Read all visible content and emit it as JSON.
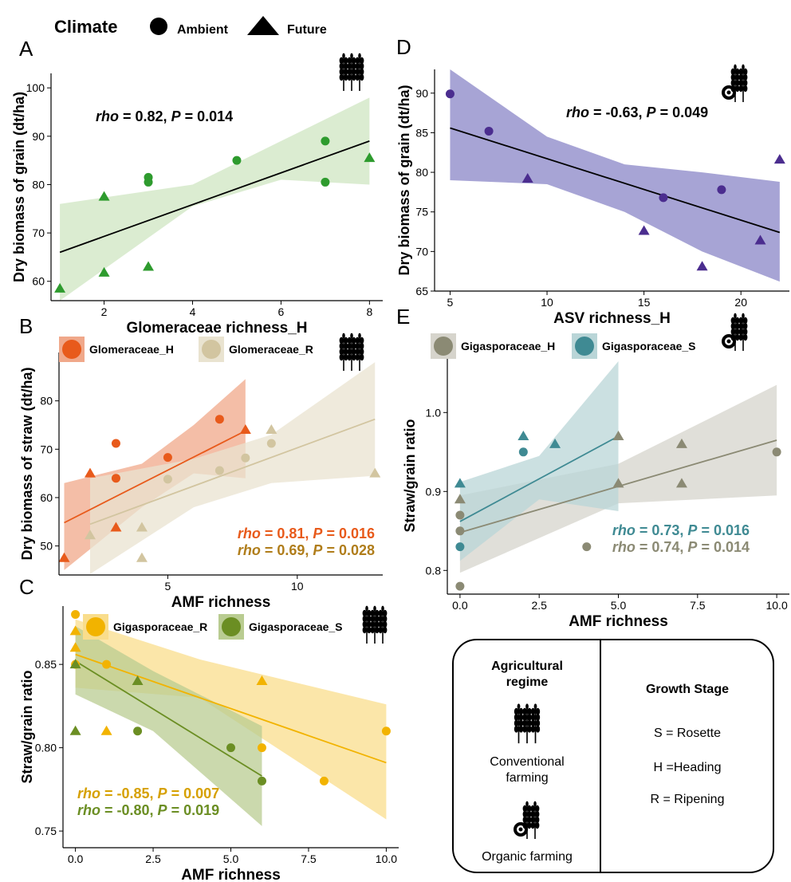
{
  "legend": {
    "title": "Climate",
    "items": [
      {
        "label": "Ambient",
        "shape": "circle"
      },
      {
        "label": "Future",
        "shape": "triangle"
      }
    ]
  },
  "colors": {
    "glom_H": "#e85a1b",
    "glom_R": "#d2c5a0",
    "giga_R": "#f2b300",
    "giga_S": "#6b8e23",
    "giga_H": "#8b8a74",
    "giga_S2": "#3f8a93",
    "asv_H": "#4b2d8f",
    "glom_A": "#2e9b2e",
    "fit": "#000000"
  },
  "chart_data": [
    {
      "panel": "A",
      "type": "scatter",
      "xlabel": "Glomeraceae richness_H",
      "ylabel": "Dry biomass of grain (dt/ha)",
      "xlim": [
        0.8,
        8.3
      ],
      "ylim": [
        56,
        103
      ],
      "xticks": [
        "2",
        "4",
        "6",
        "8"
      ],
      "xtick_values": [
        2,
        4,
        6,
        8
      ],
      "yticks": [
        "60",
        "70",
        "80",
        "90",
        "100"
      ],
      "ytick_values": [
        60,
        70,
        80,
        90,
        100
      ],
      "annotations": [
        {
          "rho": "0.82",
          "p": "0.014",
          "color": "#000000"
        }
      ],
      "farming": "conventional",
      "series": [
        {
          "color": "#2e9b2e",
          "band": "#cfe6c2",
          "points": [
            [
              1,
              58.5,
              "Future"
            ],
            [
              2,
              77.5,
              "Future"
            ],
            [
              2,
              61.8,
              "Future"
            ],
            [
              3,
              81.5,
              "Ambient"
            ],
            [
              3,
              80.5,
              "Ambient"
            ],
            [
              3,
              63,
              "Future"
            ],
            [
              5,
              85,
              "Ambient"
            ],
            [
              7,
              89,
              "Ambient"
            ],
            [
              7,
              80.5,
              "Ambient"
            ],
            [
              8,
              85.5,
              "Future"
            ]
          ],
          "fit": [
            [
              1,
              66
            ],
            [
              8,
              89
            ]
          ],
          "band_upper": [
            [
              1,
              76
            ],
            [
              4,
              80
            ],
            [
              6,
              89
            ],
            [
              8,
              98
            ]
          ],
          "band_lower": [
            [
              1,
              56
            ],
            [
              4,
              75.5
            ],
            [
              6,
              81
            ],
            [
              8,
              80
            ]
          ]
        }
      ]
    },
    {
      "panel": "D",
      "type": "scatter",
      "xlabel": "ASV richness_H",
      "ylabel": "Dry biomass of grain (dt/ha)",
      "xlim": [
        4.2,
        22.5
      ],
      "ylim": [
        65,
        93
      ],
      "xticks": [
        "5",
        "10",
        "15",
        "20"
      ],
      "xtick_values": [
        5,
        10,
        15,
        20
      ],
      "yticks": [
        "65",
        "70",
        "75",
        "80",
        "85",
        "90"
      ],
      "ytick_values": [
        65,
        70,
        75,
        80,
        85,
        90
      ],
      "annotations": [
        {
          "rho": "-0.63",
          "p": "0.049",
          "color": "#000000"
        }
      ],
      "farming": "organic",
      "series": [
        {
          "color": "#4b2d8f",
          "band": "#8a85c7",
          "points": [
            [
              5,
              89.9,
              "Ambient"
            ],
            [
              7,
              85.2,
              "Ambient"
            ],
            [
              9,
              79.2,
              "Future"
            ],
            [
              15,
              72.6,
              "Future"
            ],
            [
              16,
              76.8,
              "Ambient"
            ],
            [
              18,
              68.1,
              "Future"
            ],
            [
              19,
              77.8,
              "Ambient"
            ],
            [
              21,
              71.4,
              "Future"
            ],
            [
              22,
              81.6,
              "Future"
            ]
          ],
          "fit": [
            [
              5,
              85.6
            ],
            [
              22,
              72.4
            ]
          ],
          "band_upper": [
            [
              5,
              93
            ],
            [
              10,
              84.5
            ],
            [
              14,
              81
            ],
            [
              18,
              80
            ],
            [
              22,
              78.8
            ]
          ],
          "band_lower": [
            [
              5,
              79
            ],
            [
              10,
              78.5
            ],
            [
              14,
              75
            ],
            [
              18,
              70
            ],
            [
              22,
              66.2
            ]
          ]
        }
      ]
    },
    {
      "panel": "B",
      "type": "scatter",
      "xlabel": "AMF richness",
      "ylabel": "Dry biomass of straw (dt/ha)",
      "xlim": [
        0.8,
        13.3
      ],
      "ylim": [
        44,
        90
      ],
      "xticks": [
        "5",
        "10"
      ],
      "xtick_values": [
        5,
        10
      ],
      "yticks": [
        "50",
        "60",
        "70",
        "80"
      ],
      "ytick_values": [
        50,
        60,
        70,
        80
      ],
      "legend": [
        "Glomeraceae_H",
        "Glomeraceae_R"
      ],
      "annotations": [
        {
          "rho": "0.81",
          "p": "0.016",
          "color": "#e85a1b"
        },
        {
          "rho": "0.69",
          "p": "0.028",
          "color": "#b07d1a"
        }
      ],
      "farming": "conventional",
      "series": [
        {
          "name": "Glomeraceae_H",
          "color": "#e85a1b",
          "band": "#f0a88a",
          "points": [
            [
              1,
              47.5,
              "Future"
            ],
            [
              2,
              65,
              "Future"
            ],
            [
              3,
              71.2,
              "Ambient"
            ],
            [
              3,
              64,
              "Ambient"
            ],
            [
              3,
              53.8,
              "Future"
            ],
            [
              5,
              68.3,
              "Ambient"
            ],
            [
              7,
              76.2,
              "Ambient"
            ],
            [
              8,
              74,
              "Future"
            ]
          ],
          "fit": [
            [
              1,
              54.8
            ],
            [
              8,
              73.8
            ]
          ],
          "band_upper": [
            [
              1,
              63
            ],
            [
              4,
              67
            ],
            [
              6,
              75
            ],
            [
              8,
              84.5
            ]
          ],
          "band_lower": [
            [
              1,
              45
            ],
            [
              4,
              58
            ],
            [
              6,
              65
            ],
            [
              8,
              64
            ]
          ]
        },
        {
          "name": "Glomeraceae_R",
          "color": "#d2c5a0",
          "band": "#e9e3d0",
          "points": [
            [
              2,
              52.2,
              "Future"
            ],
            [
              4,
              53.8,
              "Future"
            ],
            [
              4,
              47.5,
              "Future"
            ],
            [
              5,
              63.8,
              "Ambient"
            ],
            [
              7,
              65.6,
              "Ambient"
            ],
            [
              8,
              68.2,
              "Ambient"
            ],
            [
              9,
              74,
              "Future"
            ],
            [
              9,
              71.2,
              "Ambient"
            ],
            [
              13,
              65,
              "Future"
            ]
          ],
          "fit": [
            [
              2,
              54.5
            ],
            [
              13,
              76.2
            ]
          ],
          "band_upper": [
            [
              2,
              64
            ],
            [
              6,
              68
            ],
            [
              9,
              73
            ],
            [
              13,
              88
            ]
          ],
          "band_lower": [
            [
              2,
              44.2
            ],
            [
              6,
              58
            ],
            [
              9,
              63
            ],
            [
              13,
              64.5
            ]
          ]
        }
      ]
    },
    {
      "panel": "E",
      "type": "scatter",
      "xlabel": "AMF richness",
      "ylabel": "Straw/grain ratio",
      "xlim": [
        -0.4,
        10.4
      ],
      "ylim": [
        0.77,
        1.07
      ],
      "xticks": [
        "0.0",
        "2.5",
        "5.0",
        "7.5",
        "10.0"
      ],
      "xtick_values": [
        0,
        2.5,
        5,
        7.5,
        10
      ],
      "yticks": [
        "0.8",
        "0.9",
        "1.0"
      ],
      "ytick_values": [
        0.8,
        0.9,
        1.0
      ],
      "legend": [
        "Gigasporaceae_H",
        "Gigasporaceae_S"
      ],
      "annotations": [
        {
          "rho": "0.73",
          "p": "0.016",
          "color": "#3f8a93"
        },
        {
          "rho": "0.74",
          "p": "0.014",
          "color": "#8b8a74"
        }
      ],
      "farming": "organic",
      "series": [
        {
          "name": "Gigasporaceae_H",
          "color": "#8b8a74",
          "band": "#d6d4cc",
          "points": [
            [
              0,
              0.78,
              "Ambient"
            ],
            [
              0,
              0.85,
              "Ambient"
            ],
            [
              0,
              0.87,
              "Ambient"
            ],
            [
              0,
              0.89,
              "Future"
            ],
            [
              4,
              0.83,
              "Ambient"
            ],
            [
              5,
              0.91,
              "Future"
            ],
            [
              5,
              0.97,
              "Future"
            ],
            [
              7,
              0.96,
              "Future"
            ],
            [
              7,
              0.91,
              "Future"
            ],
            [
              10,
              0.95,
              "Ambient"
            ]
          ],
          "fit": [
            [
              0,
              0.848
            ],
            [
              10,
              0.965
            ]
          ],
          "band_upper": [
            [
              0,
              0.895
            ],
            [
              5,
              0.935
            ],
            [
              10,
              1.035
            ]
          ],
          "band_lower": [
            [
              0,
              0.797
            ],
            [
              5,
              0.885
            ],
            [
              10,
              0.895
            ]
          ]
        },
        {
          "name": "Gigasporaceae_S",
          "color": "#3f8a93",
          "band": "#b9d5d7",
          "points": [
            [
              0,
              0.91,
              "Future"
            ],
            [
              0,
              0.83,
              "Ambient"
            ],
            [
              2,
              0.97,
              "Future"
            ],
            [
              2,
              0.95,
              "Ambient"
            ],
            [
              3,
              0.96,
              "Future"
            ]
          ],
          "fit": [
            [
              0,
              0.862
            ],
            [
              5,
              0.97
            ]
          ],
          "band_upper": [
            [
              0,
              0.912
            ],
            [
              2.5,
              0.945
            ],
            [
              5,
              1.065
            ]
          ],
          "band_lower": [
            [
              0,
              0.812
            ],
            [
              2.5,
              0.89
            ],
            [
              5,
              0.875
            ]
          ]
        }
      ]
    },
    {
      "panel": "C",
      "type": "scatter",
      "xlabel": "AMF richness",
      "ylabel": "Straw/grain ratio",
      "xlim": [
        -0.4,
        10.4
      ],
      "ylim": [
        0.74,
        0.885
      ],
      "xticks": [
        "0.0",
        "2.5",
        "5.0",
        "7.5",
        "10.0"
      ],
      "xtick_values": [
        0,
        2.5,
        5,
        7.5,
        10
      ],
      "yticks": [
        "0.75",
        "0.80",
        "0.85"
      ],
      "ytick_values": [
        0.75,
        0.8,
        0.85
      ],
      "legend": [
        "Gigasporaceae_R",
        "Gigasporaceae_S"
      ],
      "annotations": [
        {
          "rho": "-0.85",
          "p": "0.007",
          "color": "#d6a000"
        },
        {
          "rho": "-0.80",
          "p": "0.019",
          "color": "#6b8e23"
        }
      ],
      "farming": "conventional",
      "series": [
        {
          "name": "Gigasporaceae_R",
          "color": "#f2b300",
          "band": "#f9dd8c",
          "points": [
            [
              0,
              0.88,
              "Ambient"
            ],
            [
              0,
              0.87,
              "Future"
            ],
            [
              0,
              0.86,
              "Future"
            ],
            [
              0,
              0.85,
              "Ambient"
            ],
            [
              1,
              0.85,
              "Ambient"
            ],
            [
              1,
              0.81,
              "Future"
            ],
            [
              6,
              0.84,
              "Future"
            ],
            [
              6,
              0.8,
              "Ambient"
            ],
            [
              8,
              0.78,
              "Ambient"
            ],
            [
              10,
              0.81,
              "Ambient"
            ]
          ],
          "fit": [
            [
              0,
              0.856
            ],
            [
              10,
              0.791
            ]
          ],
          "band_upper": [
            [
              0,
              0.877
            ],
            [
              4,
              0.853
            ],
            [
              10,
              0.826
            ]
          ],
          "band_lower": [
            [
              0,
              0.836
            ],
            [
              4,
              0.83
            ],
            [
              10,
              0.757
            ]
          ]
        },
        {
          "name": "Gigasporaceae_S",
          "color": "#6b8e23",
          "band": "#b9cc91",
          "points": [
            [
              0,
              0.81,
              "Future"
            ],
            [
              0,
              0.85,
              "Future"
            ],
            [
              2,
              0.84,
              "Future"
            ],
            [
              2,
              0.81,
              "Ambient"
            ],
            [
              5,
              0.8,
              "Ambient"
            ],
            [
              6,
              0.78,
              "Ambient"
            ]
          ],
          "fit": [
            [
              0,
              0.852
            ],
            [
              6,
              0.783
            ]
          ],
          "band_upper": [
            [
              0,
              0.873
            ],
            [
              2.5,
              0.846
            ],
            [
              6,
              0.813
            ]
          ],
          "band_lower": [
            [
              0,
              0.832
            ],
            [
              2.5,
              0.81
            ],
            [
              6,
              0.753
            ]
          ]
        }
      ]
    }
  ],
  "panel_labels": [
    "A",
    "D",
    "B",
    "E",
    "C"
  ],
  "stat_labels": {
    "rho": "rho",
    "p": "P"
  },
  "key_box": {
    "regime_title": "Agricultural regime",
    "conventional": "Conventional farming",
    "organic": "Organic farming",
    "stage_title": "Growth Stage",
    "stages": [
      "S = Rosette",
      "H =Heading",
      "R = Ripening"
    ]
  }
}
